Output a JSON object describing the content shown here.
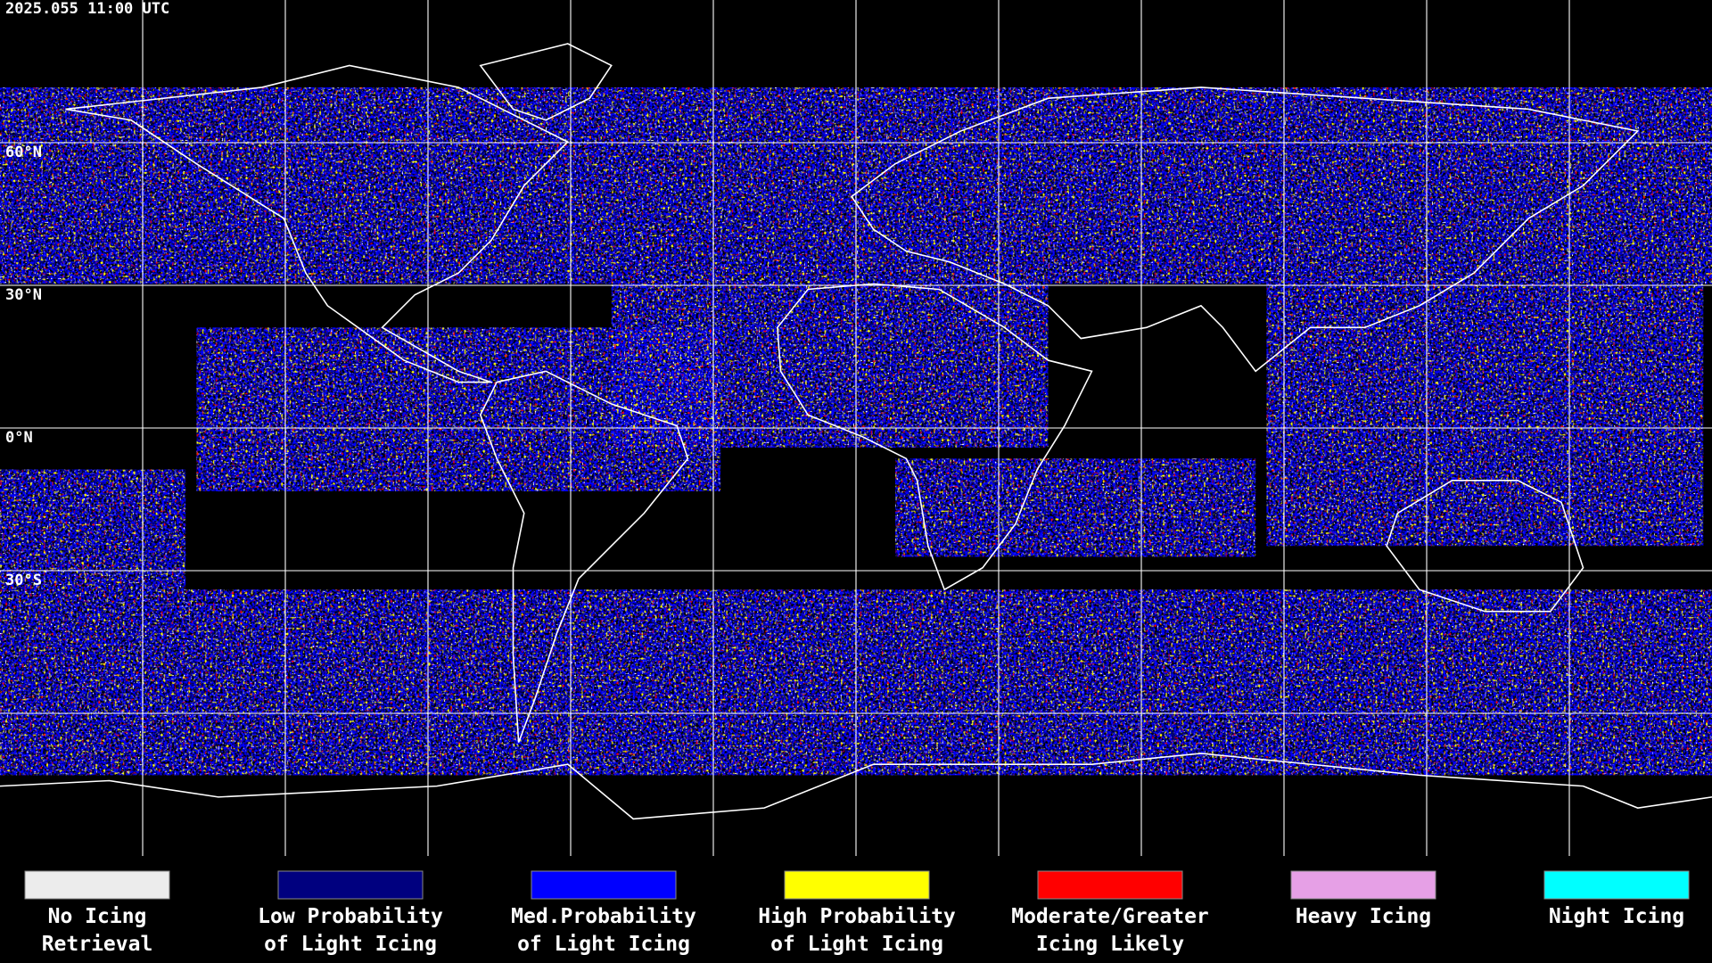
{
  "timestamp": "2025.055 11:00 UTC",
  "latitude_labels": [
    "60°N",
    "30°N",
    "0°N",
    "30°S"
  ],
  "legend": [
    {
      "lines": [
        "No Icing",
        "Retrieval"
      ],
      "color": "#ececec"
    },
    {
      "lines": [
        "Low Probability",
        "of Light Icing"
      ],
      "color": "#00007f"
    },
    {
      "lines": [
        "Med.Probability",
        "of Light Icing"
      ],
      "color": "#0000ff"
    },
    {
      "lines": [
        "High Probability",
        "of Light Icing"
      ],
      "color": "#ffff00"
    },
    {
      "lines": [
        "Moderate/Greater",
        "Icing Likely"
      ],
      "color": "#ff0000"
    },
    {
      "lines": [
        "Heavy Icing"
      ],
      "color": "#e6a0e6"
    },
    {
      "lines": [
        "Night Icing"
      ],
      "color": "#00ffff"
    }
  ]
}
